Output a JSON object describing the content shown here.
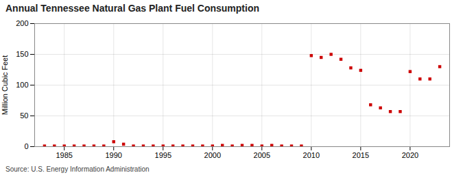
{
  "chart_data": {
    "type": "scatter",
    "title": "Annual Tennessee Natural Gas Plant Fuel Consumption",
    "ylabel": "Million Cubic Feet",
    "source": "Source: U.S. Energy Information Administration",
    "x": [
      1983,
      1984,
      1985,
      1986,
      1987,
      1988,
      1989,
      1990,
      1991,
      1992,
      1993,
      1994,
      1995,
      1996,
      1997,
      1998,
      1999,
      2000,
      2001,
      2002,
      2003,
      2004,
      2005,
      2006,
      2007,
      2008,
      2009,
      2010,
      2011,
      2012,
      2013,
      2014,
      2015,
      2016,
      2017,
      2018,
      2019,
      2020,
      2021,
      2022,
      2023
    ],
    "values": [
      1,
      1,
      1,
      1,
      1,
      1,
      1,
      8,
      4,
      1,
      1,
      1,
      1,
      1,
      1,
      1,
      1,
      1,
      2,
      1,
      2,
      2,
      1,
      2,
      1,
      1,
      1,
      148,
      145,
      150,
      142,
      128,
      124,
      68,
      63,
      57,
      57,
      122,
      110,
      110,
      130
    ],
    "color": "#cc0000",
    "marker": "square",
    "xlim": [
      1982,
      2024
    ],
    "ylim": [
      0,
      200
    ],
    "xticks": [
      1985,
      1990,
      1995,
      2000,
      2005,
      2010,
      2015,
      2020
    ],
    "yticks": [
      0,
      50,
      100,
      150,
      200
    ],
    "grid": true
  }
}
